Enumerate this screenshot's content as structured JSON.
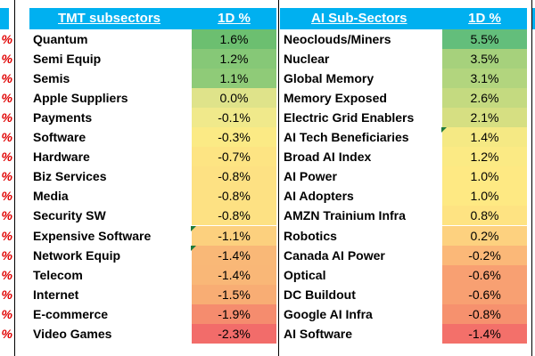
{
  "left_edge_marks": [
    "%",
    "%",
    "%",
    "%",
    "%",
    "%",
    "%",
    "%",
    "%",
    "%",
    "%",
    "%",
    "%",
    "%",
    "%",
    "%"
  ],
  "tmt": {
    "title": "TMT subsectors",
    "change_header": "1D %",
    "rows": [
      {
        "name": "Quantum",
        "value": "1.6%",
        "color": "#6cbf70"
      },
      {
        "name": "Semi Equip",
        "value": "1.2%",
        "color": "#86c877"
      },
      {
        "name": "Semis",
        "value": "1.1%",
        "color": "#8fcb78"
      },
      {
        "name": "Apple Suppliers",
        "value": "0.0%",
        "color": "#dfe38a"
      },
      {
        "name": "Payments",
        "value": "-0.1%",
        "color": "#f0e98b"
      },
      {
        "name": "Software",
        "value": "-0.3%",
        "color": "#fbea85"
      },
      {
        "name": "Hardware",
        "value": "-0.7%",
        "color": "#fde483"
      },
      {
        "name": "Biz Services",
        "value": "-0.8%",
        "color": "#fde183"
      },
      {
        "name": "Media",
        "value": "-0.8%",
        "color": "#fde183"
      },
      {
        "name": "Security SW",
        "value": "-0.8%",
        "color": "#fde183"
      },
      {
        "name": "Expensive Software",
        "value": "-1.1%",
        "color": "#fcd07e"
      },
      {
        "name": "Network Equip",
        "value": "-1.4%",
        "color": "#f9b877"
      },
      {
        "name": "Telecom",
        "value": "-1.4%",
        "color": "#f9b777"
      },
      {
        "name": "Internet",
        "value": "-1.5%",
        "color": "#f8ad74"
      },
      {
        "name": "E-commerce",
        "value": "-1.9%",
        "color": "#f58c6e"
      },
      {
        "name": "Video Games",
        "value": "-2.3%",
        "color": "#f26c6a"
      }
    ]
  },
  "ai": {
    "title": "AI Sub-Sectors",
    "change_header": "1D %",
    "rows": [
      {
        "name": "Neoclouds/Miners",
        "value": "5.5%",
        "color": "#63be7b"
      },
      {
        "name": "Nuclear",
        "value": "3.5%",
        "color": "#a6d17c"
      },
      {
        "name": "Global Memory",
        "value": "3.1%",
        "color": "#b2d57e"
      },
      {
        "name": "Memory Exposed",
        "value": "2.6%",
        "color": "#c4da80"
      },
      {
        "name": "Electric Grid Enablers",
        "value": "2.1%",
        "color": "#d6df82"
      },
      {
        "name": "AI Tech Beneficiaries",
        "value": "1.4%",
        "color": "#f5e984"
      },
      {
        "name": "Broad AI Index",
        "value": "1.2%",
        "color": "#fbea84"
      },
      {
        "name": "AI Power",
        "value": "1.0%",
        "color": "#fee983"
      },
      {
        "name": "AI Adopters",
        "value": "1.0%",
        "color": "#fee983"
      },
      {
        "name": "AMZN Trainium Infra",
        "value": "0.8%",
        "color": "#fee382"
      },
      {
        "name": "Robotics",
        "value": "0.2%",
        "color": "#fdd17f"
      },
      {
        "name": "Canada AI Power",
        "value": "-0.2%",
        "color": "#fbb878"
      },
      {
        "name": "Optical",
        "value": "-0.6%",
        "color": "#f8a072"
      },
      {
        "name": "DC Buildout",
        "value": "-0.6%",
        "color": "#f8a072"
      },
      {
        "name": "Google AI Infra",
        "value": "-0.8%",
        "color": "#f6916e"
      },
      {
        "name": "AI Software",
        "value": "-1.4%",
        "color": "#f3706a"
      }
    ]
  }
}
